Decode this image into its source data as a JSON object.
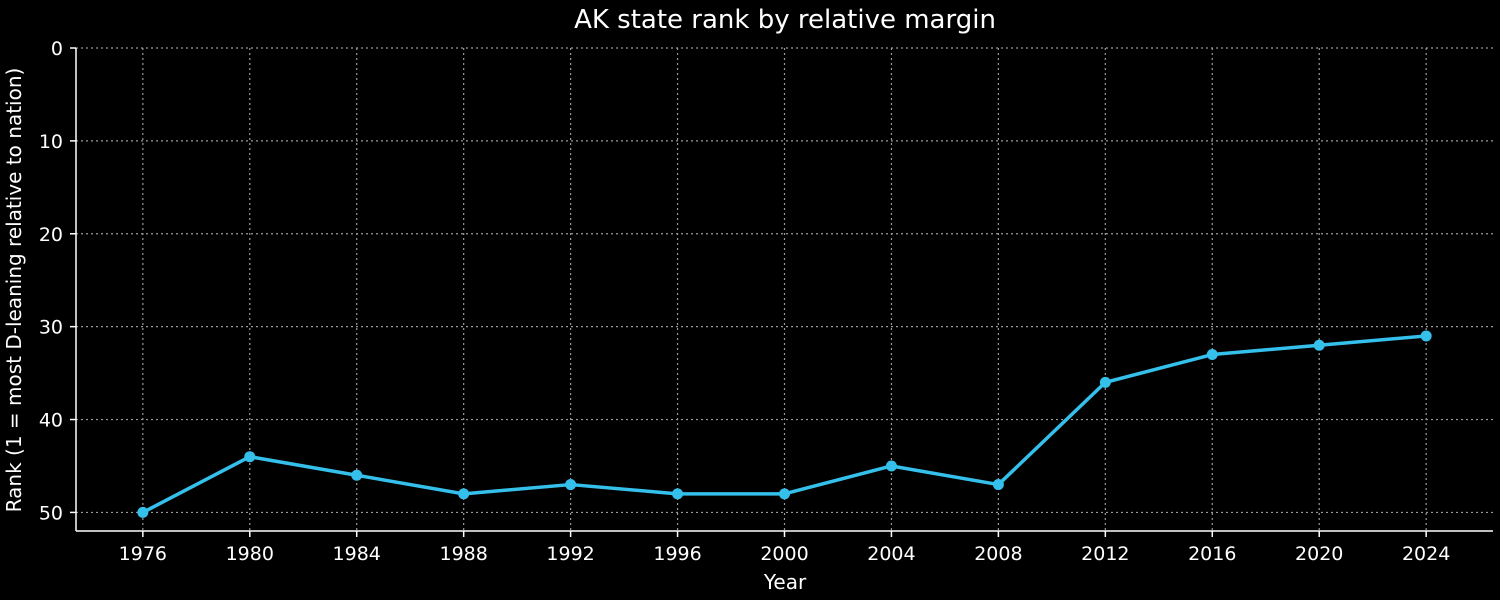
{
  "chart_data": {
    "type": "line",
    "title": "AK state rank by relative margin",
    "xlabel": "Year",
    "ylabel": "Rank (1 = most D-leaning relative to nation)",
    "x": [
      1976,
      1980,
      1984,
      1988,
      1992,
      1996,
      2000,
      2004,
      2008,
      2012,
      2016,
      2020,
      2024
    ],
    "series": [
      {
        "values": [
          50,
          44,
          46,
          48,
          47,
          48,
          48,
          45,
          47,
          36,
          33,
          32,
          31
        ]
      }
    ],
    "x_ticks": [
      1976,
      1980,
      1984,
      1988,
      1992,
      1996,
      2000,
      2004,
      2008,
      2012,
      2016,
      2020,
      2024
    ],
    "y_ticks": [
      0,
      10,
      20,
      30,
      40,
      50
    ],
    "xlim": [
      1973.5,
      2026.5
    ],
    "ylim": [
      52,
      0
    ],
    "y_inverted": true,
    "grid": true,
    "line_color": "#35c0ec",
    "background": "#000000"
  }
}
